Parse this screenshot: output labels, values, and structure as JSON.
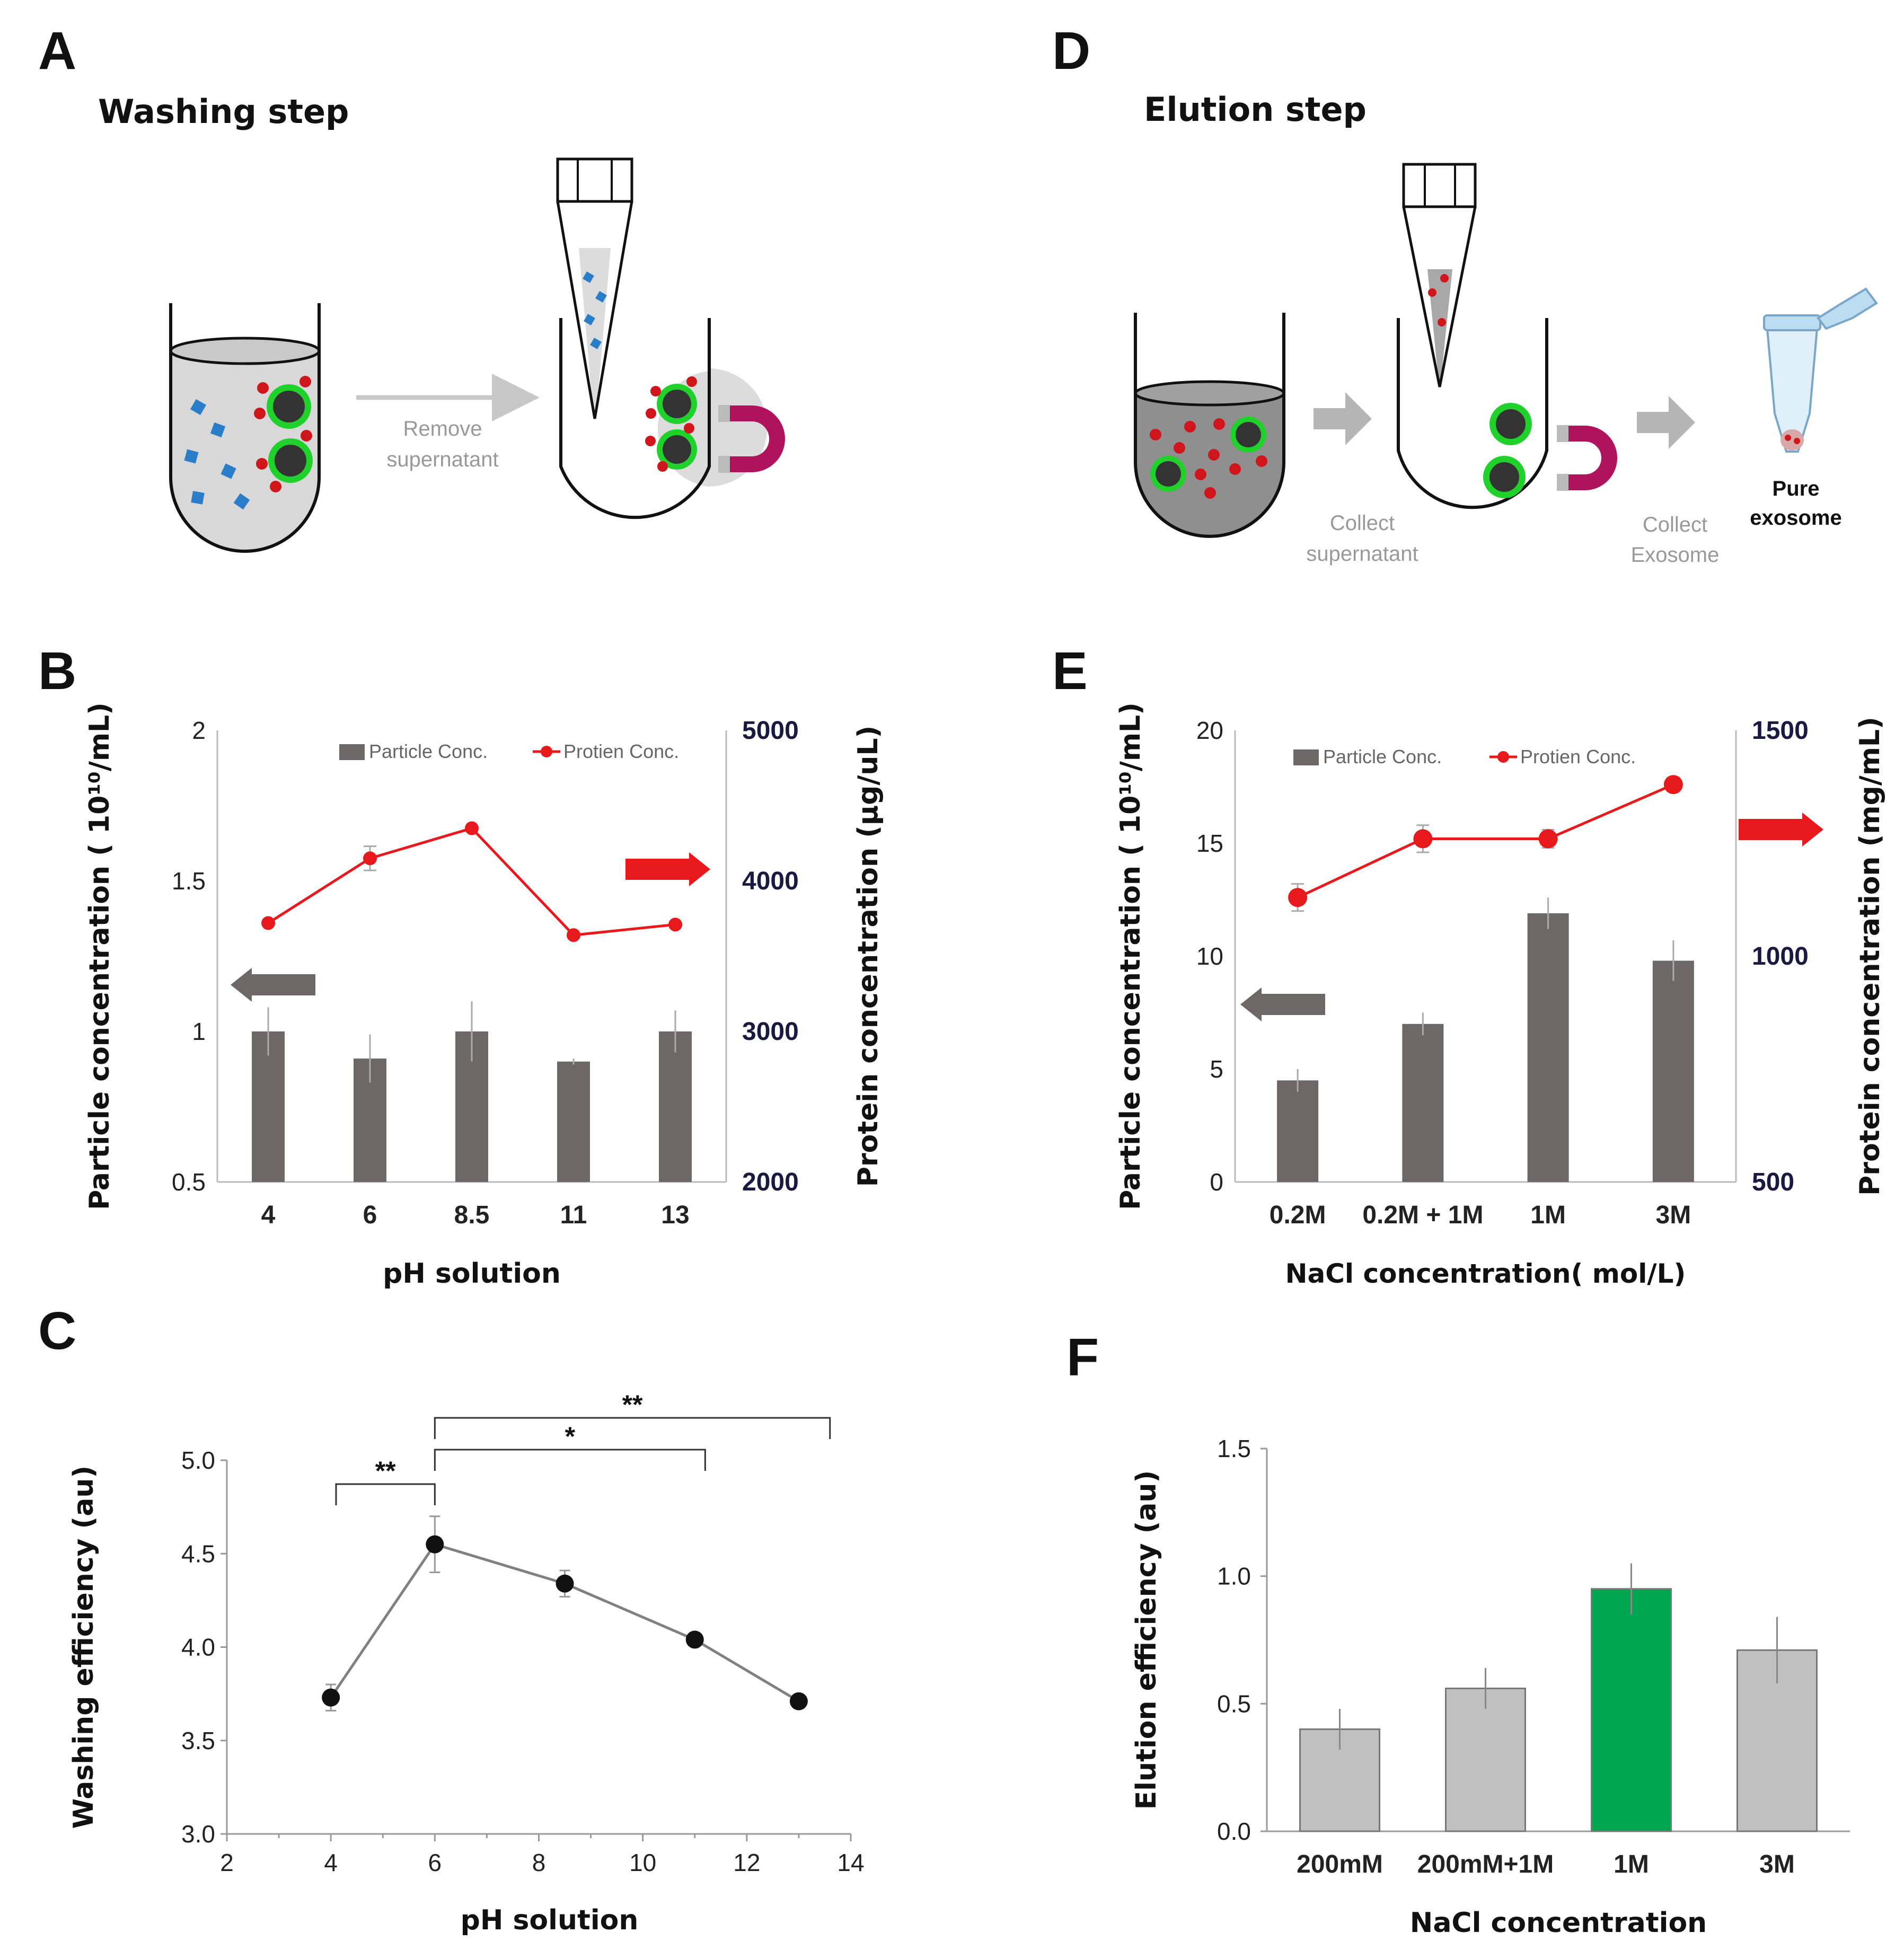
{
  "panels": {
    "A": {
      "label": "A",
      "title": "Washing step",
      "arrow_text": [
        "Remove",
        "supernatant"
      ]
    },
    "D": {
      "label": "D",
      "title": "Elution step",
      "arrow1_text": [
        "Collect",
        "supernatant"
      ],
      "arrow2_text": [
        "Collect",
        "Exosome"
      ],
      "product_text": [
        "Pure",
        "exosome"
      ]
    },
    "B": {
      "label": "B"
    },
    "E": {
      "label": "E"
    },
    "C": {
      "label": "C"
    },
    "F": {
      "label": "F"
    }
  },
  "colors": {
    "bar_dark": "#6d6867",
    "protein_line": "#e8191c",
    "gray_line": "#808080",
    "bar_light": "#c0c0c0",
    "bar_green": "#00a650",
    "bead_ring": "#1fd12a",
    "magnet": "#b0135e",
    "blue_particle": "#2a7dc8",
    "red_particle": "#d0161d"
  },
  "chart_data": [
    {
      "id": "B",
      "type": "bar",
      "categories": [
        "4",
        "6",
        "8.5",
        "11",
        "13"
      ],
      "series": [
        {
          "name": "Particle Conc.",
          "type": "bar",
          "axis": "left",
          "values": [
            1.0,
            0.91,
            1.0,
            0.9,
            1.0
          ],
          "errors": [
            0.08,
            0.08,
            0.1,
            0.01,
            0.07
          ]
        },
        {
          "name": "Protien Conc.",
          "type": "line",
          "axis": "right",
          "values": [
            3720,
            4150,
            4350,
            3640,
            3710
          ],
          "errors": [
            0,
            80,
            0,
            0,
            0
          ]
        }
      ],
      "xlabel": "pH solution",
      "ylabel": "Particle concentration ( 10¹⁰/mL)",
      "y2label": "Protein concentration (µg/uL)",
      "ylim": [
        0.5,
        2
      ],
      "yticks": [
        "0.5",
        "1",
        "1.5",
        "2"
      ],
      "y2lim": [
        2000,
        5000
      ],
      "y2ticks": [
        "2000",
        "3000",
        "4000",
        "5000"
      ]
    },
    {
      "id": "E",
      "type": "bar",
      "categories": [
        "0.2M",
        "0.2M + 1M",
        "1M",
        "3M"
      ],
      "series": [
        {
          "name": "Particle Conc.",
          "type": "bar",
          "axis": "left",
          "values": [
            4.5,
            7.0,
            11.9,
            9.8
          ],
          "errors": [
            0.5,
            0.5,
            0.7,
            0.9
          ]
        },
        {
          "name": "Protien Conc.",
          "type": "line",
          "axis": "right",
          "values": [
            1130,
            1260,
            1260,
            1380
          ],
          "errors": [
            30,
            30,
            20,
            15
          ]
        }
      ],
      "xlabel": "NaCl concentration( mol/L)",
      "ylabel": "Particle concentration ( 10¹⁰/mL)",
      "y2label": "Protein concentration (mg/mL)",
      "ylim": [
        0,
        20
      ],
      "yticks": [
        "0",
        "5",
        "10",
        "15",
        "20"
      ],
      "y2lim": [
        500,
        1500
      ],
      "y2ticks": [
        "500",
        "1000",
        "1500"
      ]
    },
    {
      "id": "C",
      "type": "line",
      "x": [
        4,
        6,
        8.5,
        11,
        13
      ],
      "y": [
        3.73,
        4.55,
        4.34,
        4.04,
        3.71
      ],
      "errors": [
        0.07,
        0.15,
        0.07,
        0.0,
        0.0
      ],
      "xlabel": "pH solution",
      "ylabel": "Washing efficiency (au)",
      "xlim": [
        2,
        14
      ],
      "xticks": [
        "2",
        "4",
        "6",
        "8",
        "10",
        "12",
        "14"
      ],
      "ylim": [
        3.0,
        5.0
      ],
      "yticks": [
        "3.0",
        "3.5",
        "4.0",
        "4.5",
        "5.0"
      ],
      "significance": [
        {
          "from": 4,
          "to": 6,
          "label": "**"
        },
        {
          "from": 6,
          "to": 11,
          "label": "*"
        },
        {
          "from": 6,
          "to": 13,
          "label": "**"
        }
      ]
    },
    {
      "id": "F",
      "type": "bar",
      "categories": [
        "200mM",
        "200mM+1M",
        "1M",
        "3M"
      ],
      "values": [
        0.4,
        0.56,
        0.95,
        0.71
      ],
      "errors": [
        0.08,
        0.08,
        0.1,
        0.13
      ],
      "highlight": "1M",
      "xlabel": "NaCl concentration",
      "ylabel": "Elution efficiency (au)",
      "ylim": [
        0,
        1.5
      ],
      "yticks": [
        "0.0",
        "0.5",
        "1.0",
        "1.5"
      ]
    }
  ]
}
